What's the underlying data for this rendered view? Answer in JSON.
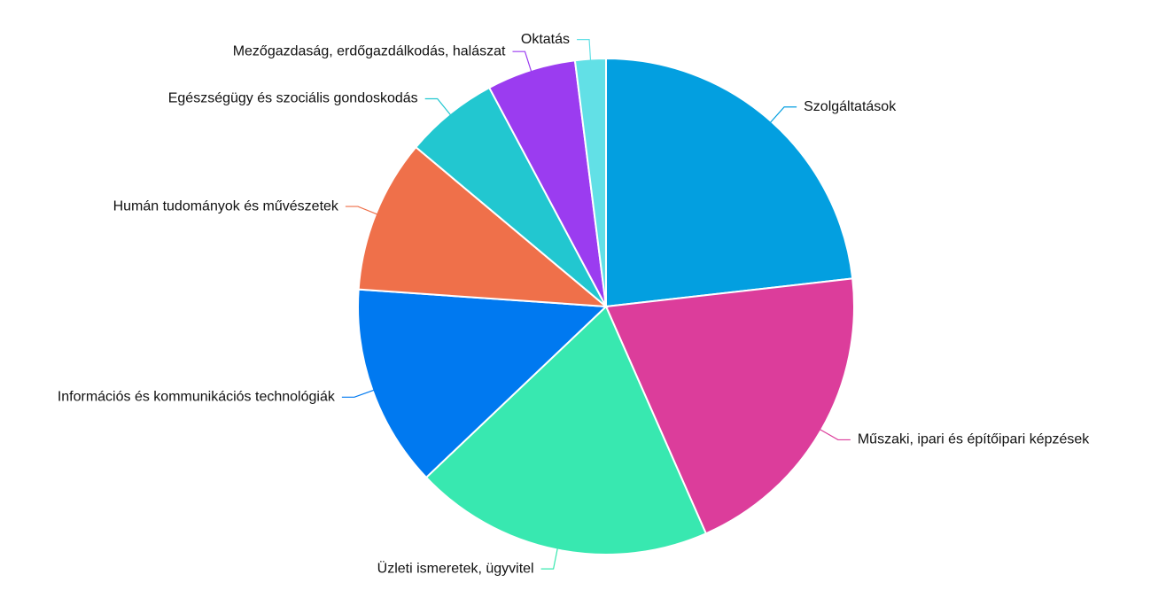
{
  "chart_data": {
    "type": "pie",
    "categories": [
      "Szolgáltatások",
      "Műszaki, ipari és építőipari képzések",
      "Üzleti ismeretek, ügyvitel",
      "Információs és kommunikációs technológiák",
      "Humán tudományok és művészetek",
      "Egészségügy és szociális gondoskodás",
      "Mezőgazdaság, erdőgazdálkodás, halászat",
      "Oktatás"
    ],
    "values": [
      23.2,
      20.2,
      19.5,
      13.2,
      10.0,
      6.1,
      5.8,
      2.0
    ],
    "colors": [
      "#039fe0",
      "#dc3d9b",
      "#38e8b0",
      "#0079f0",
      "#ef704a",
      "#22c7d0",
      "#9b3cf0",
      "#62e0e6"
    ]
  }
}
